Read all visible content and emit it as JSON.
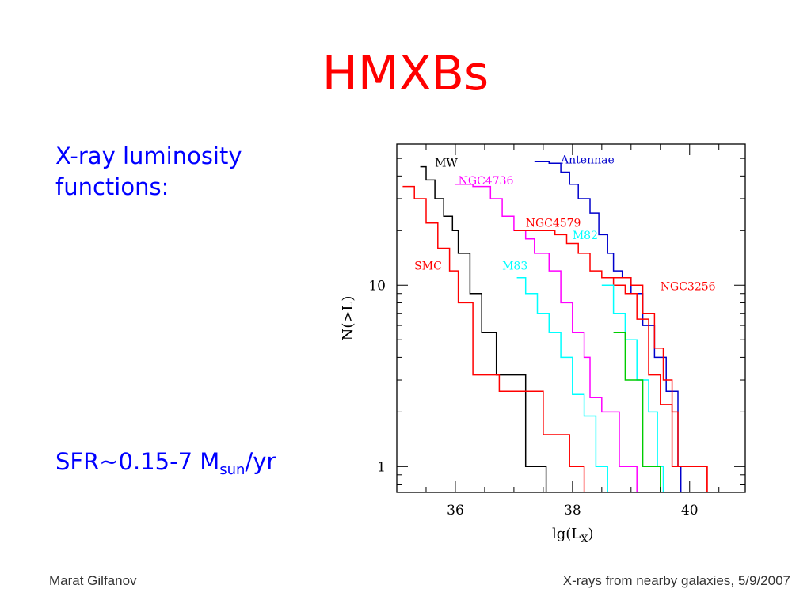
{
  "slide": {
    "title": "HMXBs",
    "bullet1": "X-ray luminosity functions:",
    "sfr_prefix": "SFR~0.15-7 M",
    "sfr_sub": "sun",
    "sfr_suffix": "/yr",
    "footer_left": "Marat Gilfanov",
    "footer_right": "X-rays from nearby galaxies, 5/9/2007"
  },
  "chart_data": {
    "type": "line",
    "step": true,
    "xlabel": "lg(L",
    "xlabel_sub": "X",
    "xlabel_close": ")",
    "ylabel": "N(>L)",
    "xlim": [
      35.0,
      40.95
    ],
    "ylim": [
      0.72,
      60
    ],
    "yscale": "log",
    "x_ticks": [
      36,
      38,
      40
    ],
    "x_tick_labels": [
      "36",
      "38",
      "40"
    ],
    "y_ticks": [
      1,
      10
    ],
    "y_tick_labels": [
      "1",
      "10"
    ],
    "series": [
      {
        "name": "MW",
        "color": "#000000",
        "x": [
          35.4,
          35.5,
          35.65,
          35.8,
          35.95,
          36.05,
          36.25,
          36.45,
          36.7,
          37.2,
          37.55
        ],
        "y": [
          45,
          38,
          30,
          24,
          20,
          15,
          9,
          5.5,
          3.2,
          1.0,
          0.72
        ]
      },
      {
        "name": "SMC",
        "color": "#ff0000",
        "x": [
          35.1,
          35.3,
          35.5,
          35.7,
          35.9,
          36.05,
          36.3,
          36.75,
          37.5,
          37.95,
          38.2
        ],
        "y": [
          35,
          30,
          22,
          16,
          12,
          8,
          3.2,
          2.6,
          1.5,
          1.0,
          0.72
        ]
      },
      {
        "name": "NGC4736",
        "color": "#ff00ff",
        "x": [
          36.0,
          36.3,
          36.6,
          36.8,
          37.0,
          37.2,
          37.35,
          37.6,
          37.8,
          38.0,
          38.2,
          38.3,
          38.5,
          38.8,
          39.1
        ],
        "y": [
          36,
          35,
          30,
          24,
          20,
          18,
          15,
          12,
          8,
          5.5,
          4.0,
          2.4,
          2.0,
          1.0,
          0.72
        ]
      },
      {
        "name": "Antennae",
        "color": "#0000cc",
        "x": [
          37.35,
          37.6,
          37.8,
          37.95,
          38.1,
          38.3,
          38.45,
          38.6,
          38.7,
          38.85,
          39.0,
          39.2,
          39.4,
          39.6,
          39.8,
          39.85
        ],
        "y": [
          48,
          47,
          42,
          36,
          30,
          25,
          19,
          15,
          12,
          11,
          9,
          6,
          4,
          2.6,
          1.0,
          0.72
        ]
      },
      {
        "name": "NGC4579",
        "color": "#ff0000",
        "x": [
          37.0,
          37.5,
          37.7,
          37.9,
          38.1,
          38.3,
          38.5,
          38.7,
          38.9,
          39.1,
          39.3,
          39.5,
          39.7,
          40.0,
          40.3
        ],
        "y": [
          20,
          20,
          19,
          17,
          15,
          12,
          11,
          10,
          9,
          6.5,
          3.2,
          2.2,
          1.0,
          1.0,
          0.72
        ]
      },
      {
        "name": "M82",
        "color": "#00ffff",
        "x": [
          38.5,
          38.7,
          38.9,
          39.1,
          39.3,
          39.45,
          39.55
        ],
        "y": [
          10,
          7,
          5,
          3.0,
          2.0,
          1.0,
          0.72
        ]
      },
      {
        "name": "M83",
        "color": "#00ffff",
        "x": [
          37.05,
          37.2,
          37.4,
          37.6,
          37.8,
          38.0,
          38.2,
          38.4,
          38.6
        ],
        "y": [
          11,
          9,
          7,
          5.5,
          4.0,
          2.5,
          1.9,
          1.0,
          0.72
        ]
      },
      {
        "name": "NGC3256",
        "color": "#ff0000",
        "x": [
          38.6,
          39.0,
          39.2,
          39.4,
          39.55,
          39.7,
          39.8,
          40.3
        ],
        "y": [
          11,
          10,
          7,
          4.5,
          3.0,
          2.0,
          1.0,
          0.72
        ]
      },
      {
        "name": "",
        "color": "#00cc00",
        "x": [
          38.7,
          38.9,
          39.2,
          39.5
        ],
        "y": [
          5.5,
          3.0,
          1.0,
          0.72
        ]
      }
    ],
    "labels": [
      {
        "text": "MW",
        "color": "#000000",
        "x": 35.65,
        "y": 45
      },
      {
        "text": "NGC4736",
        "color": "#ff00ff",
        "x": 36.05,
        "y": 36
      },
      {
        "text": "Antennae",
        "color": "#0000cc",
        "x": 37.8,
        "y": 47
      },
      {
        "text": "NGC4579",
        "color": "#ff0000",
        "x": 37.2,
        "y": 21
      },
      {
        "text": "M82",
        "color": "#00ffff",
        "x": 38.0,
        "y": 18
      },
      {
        "text": "SMC",
        "color": "#ff0000",
        "x": 35.3,
        "y": 12.2
      },
      {
        "text": "M83",
        "color": "#00ffff",
        "x": 36.8,
        "y": 12.2
      },
      {
        "text": "NGC3256",
        "color": "#ff0000",
        "x": 39.5,
        "y": 9.4
      }
    ]
  }
}
